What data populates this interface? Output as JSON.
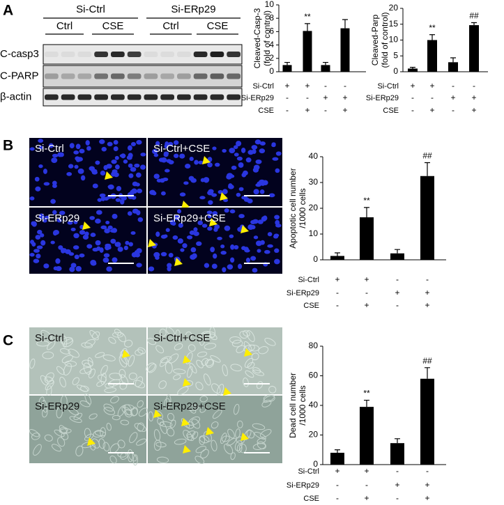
{
  "panel_labels": [
    "A",
    "B",
    "C"
  ],
  "blot": {
    "groups": [
      "Si-Ctrl",
      "Si-ERp29"
    ],
    "treatments": [
      "Ctrl",
      "CSE",
      "Ctrl",
      "CSE"
    ],
    "rows": [
      "C-casp3",
      "C-PARP",
      "β-actin"
    ]
  },
  "micrographs": [
    {
      "labels": [
        "Si-Ctrl",
        "Si-Ctrl+CSE",
        "Si-ERp29",
        "Si-ERp29+CSE"
      ]
    },
    {
      "labels": [
        "Si-Ctrl",
        "Si-Ctrl+CSE",
        "Si-ERp29",
        "Si-ERp29+CSE"
      ]
    }
  ],
  "chart_data": [
    {
      "type": "bar",
      "y_label": [
        "Cleaved-Casp-3",
        "(fold of control)"
      ],
      "color": "#000000",
      "values": [
        1.0,
        6.1,
        1.0,
        6.5
      ],
      "errors": [
        0.4,
        1.1,
        0.4,
        1.3
      ],
      "annotations": [
        null,
        "**",
        null,
        null
      ],
      "ylim": [
        0,
        10
      ],
      "yticks": [
        0,
        2,
        4,
        6,
        8,
        10
      ],
      "conditions": [
        {
          "label": "Si-Ctrl",
          "signs": [
            "+",
            "+",
            "-",
            "-"
          ]
        },
        {
          "label": "Si-ERp29",
          "signs": [
            "-",
            "-",
            "+",
            "+"
          ]
        },
        {
          "label": "CSE",
          "signs": [
            "-",
            "+",
            "-",
            "+"
          ]
        }
      ]
    },
    {
      "type": "bar",
      "y_label": [
        "Cleaved-Parp",
        "(fold of control)"
      ],
      "color": "#000000",
      "values": [
        1.0,
        10.0,
        3.0,
        14.7
      ],
      "errors": [
        0.4,
        1.7,
        1.4,
        0.8
      ],
      "annotations": [
        null,
        "**",
        null,
        "##"
      ],
      "ylim": [
        0,
        20
      ],
      "yticks": [
        0,
        5,
        10,
        15,
        20
      ],
      "conditions": [
        {
          "label": "Si-Ctrl",
          "signs": [
            "+",
            "+",
            "-",
            "-"
          ]
        },
        {
          "label": "Si-ERp29",
          "signs": [
            "-",
            "-",
            "+",
            "+"
          ]
        },
        {
          "label": "CSE",
          "signs": [
            "-",
            "+",
            "-",
            "+"
          ]
        }
      ]
    },
    {
      "type": "bar",
      "y_label": [
        "Apoptotic cell number",
        "/1000 cells"
      ],
      "color": "#000000",
      "values": [
        1.5,
        16.5,
        2.5,
        32.5
      ],
      "errors": [
        1.2,
        3.8,
        1.5,
        5.2
      ],
      "annotations": [
        null,
        "**",
        null,
        "##"
      ],
      "ylim": [
        0,
        40
      ],
      "yticks": [
        0,
        10,
        20,
        30,
        40
      ],
      "conditions": [
        {
          "label": "Si-Ctrl",
          "signs": [
            "+",
            "+",
            "-",
            "-"
          ]
        },
        {
          "label": "Si-ERp29",
          "signs": [
            "-",
            "-",
            "+",
            "+"
          ]
        },
        {
          "label": "CSE",
          "signs": [
            "-",
            "+",
            "-",
            "+"
          ]
        }
      ]
    },
    {
      "type": "bar",
      "y_label": [
        "Dead cell number",
        "/1000 cells"
      ],
      "color": "#000000",
      "values": [
        8,
        39,
        14.5,
        58
      ],
      "errors": [
        2,
        4.5,
        3,
        7.5
      ],
      "annotations": [
        null,
        "**",
        null,
        "##"
      ],
      "ylim": [
        0,
        80
      ],
      "yticks": [
        0,
        20,
        40,
        60,
        80
      ],
      "conditions": [
        {
          "label": "Si-Ctrl",
          "signs": [
            "+",
            "+",
            "-",
            "-"
          ]
        },
        {
          "label": "Si-ERp29",
          "signs": [
            "-",
            "-",
            "+",
            "+"
          ]
        },
        {
          "label": "CSE",
          "signs": [
            "-",
            "+",
            "-",
            "+"
          ]
        }
      ]
    }
  ]
}
